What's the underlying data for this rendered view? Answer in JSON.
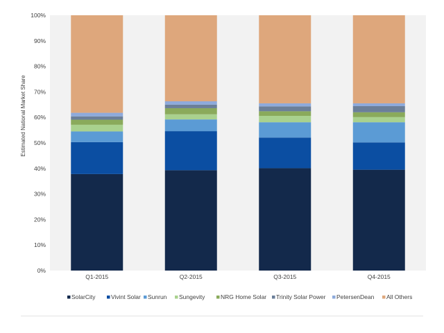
{
  "chart_data": {
    "type": "bar",
    "stacked": true,
    "percent": true,
    "title": "",
    "xlabel": "",
    "ylabel": "Estimated National Market Share",
    "ylim": [
      0,
      100
    ],
    "yticks": [
      "0%",
      "10%",
      "20%",
      "30%",
      "40%",
      "50%",
      "60%",
      "70%",
      "80%",
      "90%",
      "100%"
    ],
    "categories": [
      "Q1-2015",
      "Q2-2015",
      "Q3-2015",
      "Q4-2015"
    ],
    "legend_position": "bottom",
    "grid": false,
    "series": [
      {
        "name": "SolarCity",
        "color": "#13294b",
        "values": [
          37.8,
          39.3,
          40.1,
          39.5
        ]
      },
      {
        "name": "Vivint Solar",
        "color": "#0b4ea2",
        "values": [
          12.5,
          15.3,
          12.0,
          10.7
        ]
      },
      {
        "name": "Sunrun",
        "color": "#5b9bd5",
        "values": [
          4.2,
          4.6,
          6.0,
          7.9
        ]
      },
      {
        "name": "Sungevity",
        "color": "#a9d18e",
        "values": [
          2.6,
          2.0,
          2.5,
          2.0
        ]
      },
      {
        "name": "NRG Home Solar",
        "color": "#8aaa5b",
        "values": [
          2.0,
          2.4,
          1.8,
          1.9
        ]
      },
      {
        "name": "Trinity Solar Power",
        "color": "#6b7f99",
        "values": [
          1.3,
          1.4,
          1.9,
          2.4
        ]
      },
      {
        "name": "PetersenDean",
        "color": "#8eaadb",
        "values": [
          1.4,
          1.3,
          1.2,
          1.1
        ]
      },
      {
        "name": "All Others",
        "color": "#dea77c",
        "values": [
          38.2,
          33.7,
          34.5,
          34.5
        ]
      }
    ]
  }
}
